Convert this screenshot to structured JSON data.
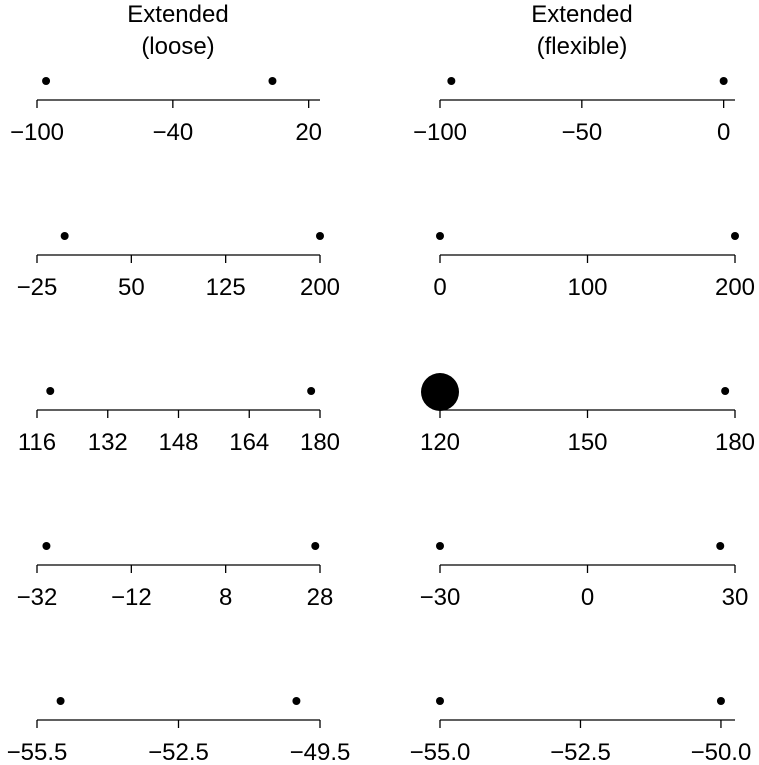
{
  "columns": [
    {
      "title_line1": "Extended",
      "title_line2": "(loose)"
    },
    {
      "title_line1": "Extended",
      "title_line2": "(flexible)"
    }
  ],
  "chart_data": [
    {
      "type": "scatter",
      "column": 0,
      "row": 0,
      "xlim": [
        -100,
        25
      ],
      "ticks": [
        -100,
        -40,
        20
      ],
      "tick_labels": [
        "−100",
        "−40",
        "20"
      ],
      "points": [
        -96,
        4
      ]
    },
    {
      "type": "scatter",
      "column": 0,
      "row": 1,
      "xlim": [
        -25,
        200
      ],
      "ticks": [
        -25,
        50,
        125,
        200
      ],
      "tick_labels": [
        "−25",
        "50",
        "125",
        "200"
      ],
      "points": [
        -3,
        200
      ]
    },
    {
      "type": "scatter",
      "column": 0,
      "row": 2,
      "xlim": [
        116,
        180
      ],
      "ticks": [
        116,
        132,
        148,
        164,
        180
      ],
      "tick_labels": [
        "116",
        "132",
        "148",
        "164",
        "180"
      ],
      "points": [
        119,
        178
      ]
    },
    {
      "type": "scatter",
      "column": 0,
      "row": 3,
      "xlim": [
        -32,
        28
      ],
      "ticks": [
        -32,
        -12,
        8,
        28
      ],
      "tick_labels": [
        "−32",
        "−12",
        "8",
        "28"
      ],
      "points": [
        -30,
        27
      ]
    },
    {
      "type": "scatter",
      "column": 0,
      "row": 4,
      "xlim": [
        -55.5,
        -49.5
      ],
      "ticks": [
        -55.5,
        -52.5,
        -49.5
      ],
      "tick_labels": [
        "−55.5",
        "−52.5",
        "−49.5"
      ],
      "points": [
        -55,
        -50
      ]
    },
    {
      "type": "scatter",
      "column": 1,
      "row": 0,
      "xlim": [
        -100,
        4
      ],
      "ticks": [
        -100,
        -50,
        0
      ],
      "tick_labels": [
        "−100",
        "−50",
        "0"
      ],
      "points": [
        -96,
        0
      ]
    },
    {
      "type": "scatter",
      "column": 1,
      "row": 1,
      "xlim": [
        0,
        200
      ],
      "ticks": [
        0,
        100,
        200
      ],
      "tick_labels": [
        "0",
        "100",
        "200"
      ],
      "points": [
        0,
        200
      ]
    },
    {
      "type": "scatter",
      "column": 1,
      "row": 2,
      "xlim": [
        120,
        180
      ],
      "ticks": [
        120,
        150,
        180
      ],
      "tick_labels": [
        "120",
        "150",
        "180"
      ],
      "points": [
        120,
        178
      ],
      "large_point_value": 120
    },
    {
      "type": "scatter",
      "column": 1,
      "row": 3,
      "xlim": [
        -30,
        30
      ],
      "ticks": [
        -30,
        0,
        30
      ],
      "tick_labels": [
        "−30",
        "0",
        "30"
      ],
      "points": [
        -30,
        27
      ]
    },
    {
      "type": "scatter",
      "column": 1,
      "row": 4,
      "xlim": [
        -55,
        -49.75
      ],
      "ticks": [
        -55,
        -52.5,
        -50
      ],
      "tick_labels": [
        "−55.0",
        "−52.5",
        "−50.0"
      ],
      "points": [
        -55,
        -50
      ]
    }
  ]
}
